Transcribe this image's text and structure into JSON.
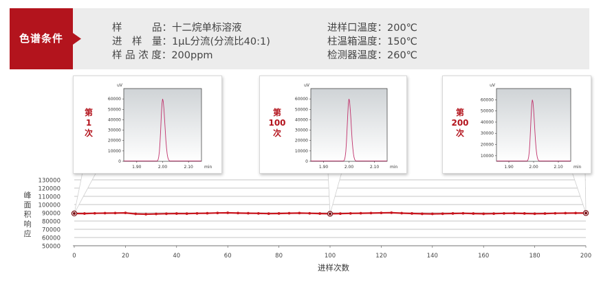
{
  "conditions": {
    "tab_label": "色谱条件",
    "left_lines": [
      "样　　　品：十二烷单标溶液",
      "进　样　量：1μL分流(分流比40:1)",
      "样 品 浓 度：200ppm"
    ],
    "right_lines": [
      "进样口温度：200℃",
      "柱温箱温度：150℃",
      "检测器温度：260℃"
    ],
    "accent_color": "#b3141d"
  },
  "insets": [
    {
      "run_label": [
        "第",
        "1",
        "次"
      ],
      "y_unit": "uV",
      "x_unit": "min",
      "y_ticks": [
        "60000",
        "50000",
        "40000",
        "30000",
        "20000",
        "10000",
        "0"
      ],
      "x_ticks": [
        "1.90",
        "2.00",
        "2.10"
      ]
    },
    {
      "run_label": [
        "第",
        "100",
        "次"
      ],
      "y_unit": "uV",
      "x_unit": "min",
      "y_ticks": [
        "60000",
        "50000",
        "40000",
        "30000",
        "20000",
        "10000",
        "0"
      ],
      "x_ticks": [
        "1.90",
        "2.00",
        "2.10"
      ]
    },
    {
      "run_label": [
        "第",
        "200",
        "次"
      ],
      "y_unit": "uV",
      "x_unit": "min",
      "y_ticks": [
        "60000",
        "50000",
        "40000",
        "30000",
        "20000",
        "10000"
      ],
      "x_ticks": [
        "1.90",
        "2.00",
        "2.10"
      ]
    }
  ],
  "chart_data": [
    {
      "type": "scatter",
      "title": "",
      "xlabel": "进样次数",
      "ylabel": "峰面积响应",
      "xlim": [
        0,
        200
      ],
      "ylim": [
        50000,
        130000
      ],
      "x_ticks": [
        0,
        20,
        40,
        60,
        80,
        100,
        120,
        140,
        160,
        180,
        200
      ],
      "y_ticks": [
        130000,
        120000,
        110000,
        100000,
        90000,
        80000,
        70000,
        60000,
        50000
      ],
      "grid": true,
      "series": [
        {
          "x": [
            0,
            4,
            8,
            12,
            16,
            20,
            24,
            28,
            32,
            36,
            40,
            44,
            48,
            52,
            56,
            60,
            64,
            68,
            72,
            76,
            80,
            84,
            88,
            92,
            96,
            100,
            104,
            108,
            112,
            116,
            120,
            124,
            128,
            132,
            136,
            140,
            144,
            148,
            152,
            156,
            160,
            164,
            168,
            172,
            176,
            180,
            184,
            188,
            192,
            196,
            200
          ],
          "y": [
            89200,
            89100,
            89400,
            89600,
            89700,
            89900,
            88700,
            88300,
            88600,
            88900,
            89100,
            89000,
            89300,
            89500,
            89800,
            90000,
            89700,
            89500,
            89300,
            89000,
            89200,
            89500,
            89700,
            89400,
            89100,
            88800,
            89000,
            89300,
            89500,
            89700,
            89900,
            90100,
            89600,
            89200,
            88800,
            88700,
            88900,
            89200,
            89400,
            89100,
            88800,
            89000,
            89300,
            89500,
            89200,
            88900,
            89100,
            89400,
            89600,
            89700,
            89700
          ]
        }
      ],
      "highlight_points": [
        0,
        100,
        200
      ],
      "color": "#c8161e"
    },
    {
      "type": "line",
      "title": "",
      "xlabel": "min",
      "ylabel": "uV",
      "xlim": [
        1.85,
        2.15
      ],
      "ylim": [
        0,
        70000
      ],
      "series": [
        {
          "peak_x": 2.0,
          "peak_y": 60000
        }
      ],
      "color": "#c0306a"
    },
    {
      "type": "line",
      "title": "",
      "xlabel": "min",
      "ylabel": "uV",
      "xlim": [
        1.85,
        2.15
      ],
      "ylim": [
        0,
        70000
      ],
      "series": [
        {
          "peak_x": 2.0,
          "peak_y": 60000
        }
      ],
      "color": "#c0306a"
    },
    {
      "type": "line",
      "title": "",
      "xlabel": "min",
      "ylabel": "uV",
      "xlim": [
        1.85,
        2.15
      ],
      "ylim": [
        5000,
        70000
      ],
      "series": [
        {
          "peak_x": 1.995,
          "peak_y": 60000
        }
      ],
      "color": "#c0306a"
    }
  ]
}
